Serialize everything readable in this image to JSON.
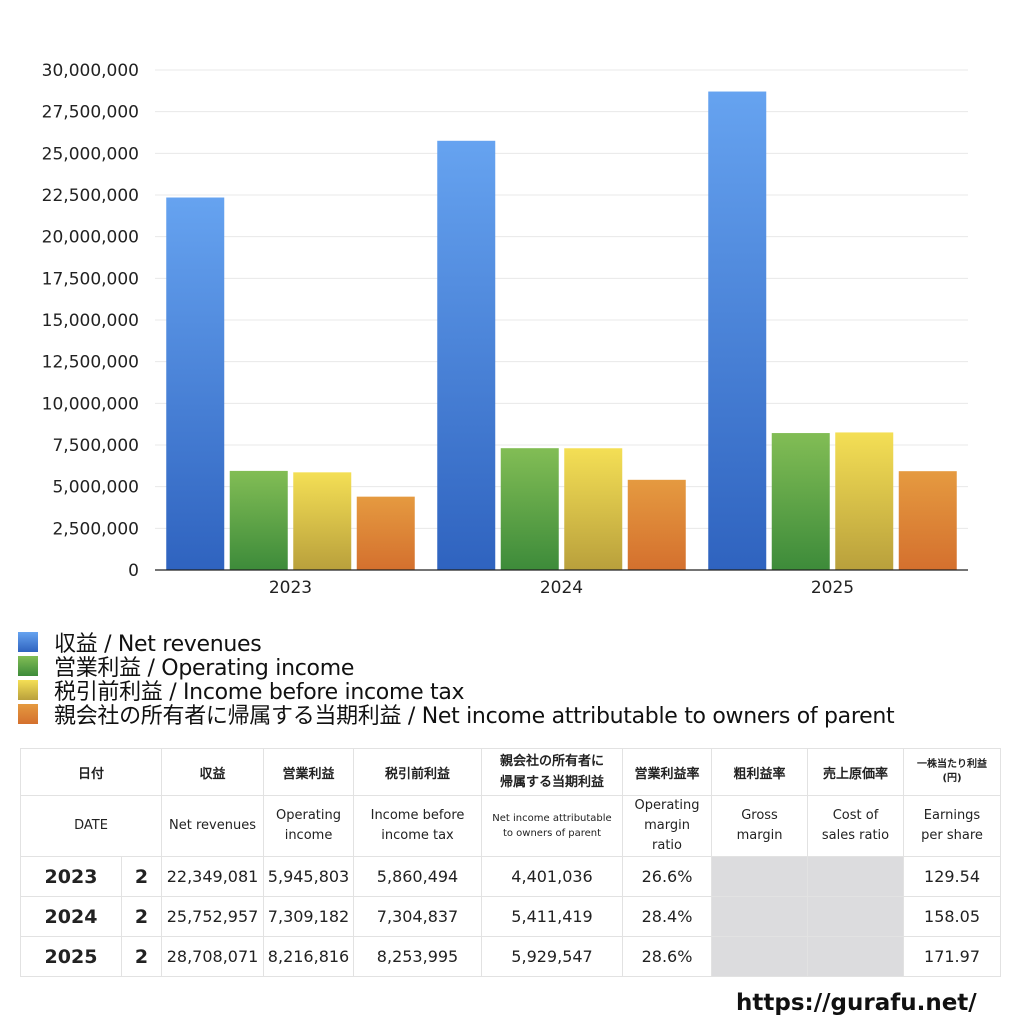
{
  "chart_data": {
    "type": "bar",
    "title": "",
    "xlabel": "",
    "ylabel": "",
    "categories": [
      "2023",
      "2024",
      "2025"
    ],
    "ylim": [
      0,
      30000000
    ],
    "yticks": [
      0,
      2500000,
      5000000,
      7500000,
      10000000,
      12500000,
      15000000,
      17500000,
      20000000,
      22500000,
      25000000,
      27500000,
      30000000
    ],
    "ytick_labels": [
      "0",
      "2,500,000",
      "5,000,000",
      "7,500,000",
      "10,000,000",
      "12,500,000",
      "15,000,000",
      "17,500,000",
      "20,000,000",
      "22,500,000",
      "25,000,000",
      "27,500,000",
      "30,000,000"
    ],
    "grid": true,
    "legend_position": "bottom",
    "series": [
      {
        "name": "収益 / Net revenues",
        "values": [
          22349081,
          25752957,
          28708071
        ],
        "color_top": "#66a3f0",
        "color_bottom": "#2f63bf"
      },
      {
        "name": "営業利益 / Operating income",
        "values": [
          5945803,
          7309182,
          8216816
        ],
        "color_top": "#82bd55",
        "color_bottom": "#3d8b3a"
      },
      {
        "name": "税引前利益 / Income before income tax",
        "values": [
          5860494,
          7304837,
          8253995
        ],
        "color_top": "#f4df55",
        "color_bottom": "#b9a03c"
      },
      {
        "name": "親会社の所有者に帰属する当期利益 / Net income attributable to owners of parent",
        "values": [
          4401036,
          5411419,
          5929547
        ],
        "color_top": "#e59a40",
        "color_bottom": "#d4702e"
      }
    ]
  },
  "table": {
    "header_jp": [
      "日付",
      "収益",
      "営業利益",
      "税引前利益",
      "親会社の所有者に帰属する当期利益",
      "営業利益率",
      "粗利益率",
      "売上原価率",
      "一株当たり利益(円)"
    ],
    "header_jp_lines": {
      "parent_line1": "親会社の所有者に",
      "parent_line2": "帰属する当期利益",
      "eps_line1": "一株当たり利益",
      "eps_line2": "(円)"
    },
    "header_en": {
      "date": "DATE",
      "revenues": "Net revenues",
      "operating_1": "Operating",
      "operating_2": "income",
      "before_tax_1": "Income before",
      "before_tax_2": "income tax",
      "parent_1": "Net income attributable",
      "parent_2": "to owners of parent",
      "op_margin_1": "Operating",
      "op_margin_2": "margin",
      "op_margin_3": "ratio",
      "gross_1": "Gross",
      "gross_2": "margin",
      "cost_1": "Cost of",
      "cost_2": "sales ratio",
      "eps_1": "Earnings",
      "eps_2": "per share"
    },
    "rows": [
      {
        "year": "2023",
        "quarter": "2",
        "revenues": "22,349,081",
        "operating": "5,945,803",
        "before_tax": "5,860,494",
        "parent": "4,401,036",
        "op_margin": "26.6%",
        "gross": "",
        "cost": "",
        "eps": "129.54"
      },
      {
        "year": "2024",
        "quarter": "2",
        "revenues": "25,752,957",
        "operating": "7,309,182",
        "before_tax": "7,304,837",
        "parent": "5,411,419",
        "op_margin": "28.4%",
        "gross": "",
        "cost": "",
        "eps": "158.05"
      },
      {
        "year": "2025",
        "quarter": "2",
        "revenues": "28,708,071",
        "operating": "8,216,816",
        "before_tax": "8,253,995",
        "parent": "5,929,547",
        "op_margin": "28.6%",
        "gross": "",
        "cost": "",
        "eps": "171.97"
      }
    ]
  },
  "footer": {
    "url": "https://gurafu.net/"
  }
}
